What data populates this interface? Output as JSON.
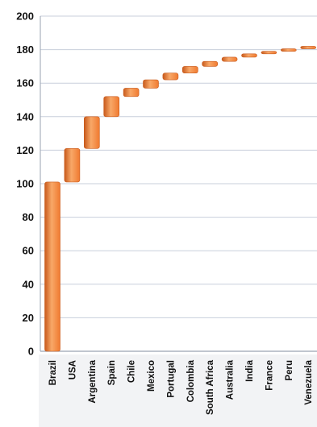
{
  "chart_data": {
    "type": "bar",
    "subtype": "waterfall",
    "title": "",
    "xlabel": "",
    "ylabel": "",
    "ylim": [
      0,
      200
    ],
    "yticks": [
      0,
      20,
      40,
      60,
      80,
      100,
      120,
      140,
      160,
      180,
      200
    ],
    "grid": true,
    "legend": "none",
    "categories": [
      "Brazil",
      "USA",
      "Argentina",
      "Spain",
      "Chile",
      "Mexico",
      "Portugal",
      "Colombia",
      "South Africa",
      "Australia",
      "India",
      "France",
      "Peru",
      "Venezuela"
    ],
    "values": [
      101,
      20,
      19,
      12,
      5,
      5,
      4,
      4,
      3,
      2.5,
      2,
      1.5,
      1.5,
      1.5
    ],
    "cumulative": [
      101,
      121,
      140,
      152,
      157,
      162,
      166,
      170,
      173,
      175.5,
      177.5,
      179,
      180.5,
      182
    ],
    "colors": {
      "bar": "#f07a30",
      "bar_highlight": "#f8a868",
      "bar_shadow": "#c85a1c",
      "grid": "#c8cfdb",
      "axis": "#9aa3b2",
      "label_panel": "#f2f3f5"
    }
  }
}
